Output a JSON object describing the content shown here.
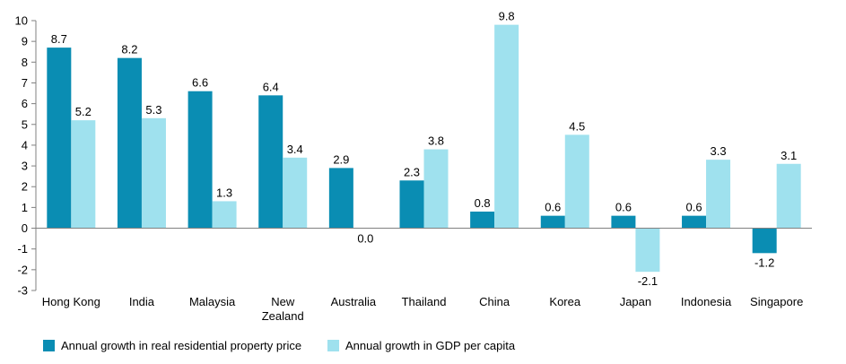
{
  "chart_data": {
    "type": "bar",
    "categories": [
      "Hong Kong",
      "India",
      "Malaysia",
      "New Zealand",
      "Australia",
      "Thailand",
      "China",
      "Korea",
      "Japan",
      "Indonesia",
      "Singapore"
    ],
    "category_lines": [
      [
        "Hong Kong"
      ],
      [
        "India"
      ],
      [
        "Malaysia"
      ],
      [
        "New",
        "Zealand"
      ],
      [
        "Australia"
      ],
      [
        "Thailand"
      ],
      [
        "China"
      ],
      [
        "Korea"
      ],
      [
        "Japan"
      ],
      [
        "Indonesia"
      ],
      [
        "Singapore"
      ]
    ],
    "series": [
      {
        "name": "Annual growth in real residential property price",
        "color": "#0a8db3",
        "values": [
          8.7,
          8.2,
          6.6,
          6.4,
          2.9,
          2.3,
          0.8,
          0.6,
          0.6,
          0.6,
          -1.2
        ],
        "labels": [
          "8.7",
          "8.2",
          "6.6",
          "6.4",
          "2.9",
          "2.3",
          "0.8",
          "0.6",
          "0.6",
          "0.6",
          "-1.2"
        ]
      },
      {
        "name": "Annual growth in GDP per capita",
        "color": "#9fe1ee",
        "values": [
          5.2,
          5.3,
          1.3,
          3.4,
          0.0,
          3.8,
          9.8,
          4.5,
          -2.1,
          3.3,
          3.1
        ],
        "labels": [
          "5.2",
          "5.3",
          "1.3",
          "3.4",
          "0.0",
          "3.8",
          "9.8",
          "4.5",
          "-2.1",
          "3.3",
          "3.1"
        ]
      }
    ],
    "ylim": [
      -3,
      10
    ],
    "yticks": [
      "-3",
      "-2",
      "-1",
      "0",
      "1",
      "2",
      "3",
      "4",
      "5",
      "6",
      "7",
      "8",
      "9",
      "10"
    ],
    "title": "",
    "xlabel": "",
    "ylabel": "",
    "grid": false,
    "legend_position": "bottom-left"
  }
}
